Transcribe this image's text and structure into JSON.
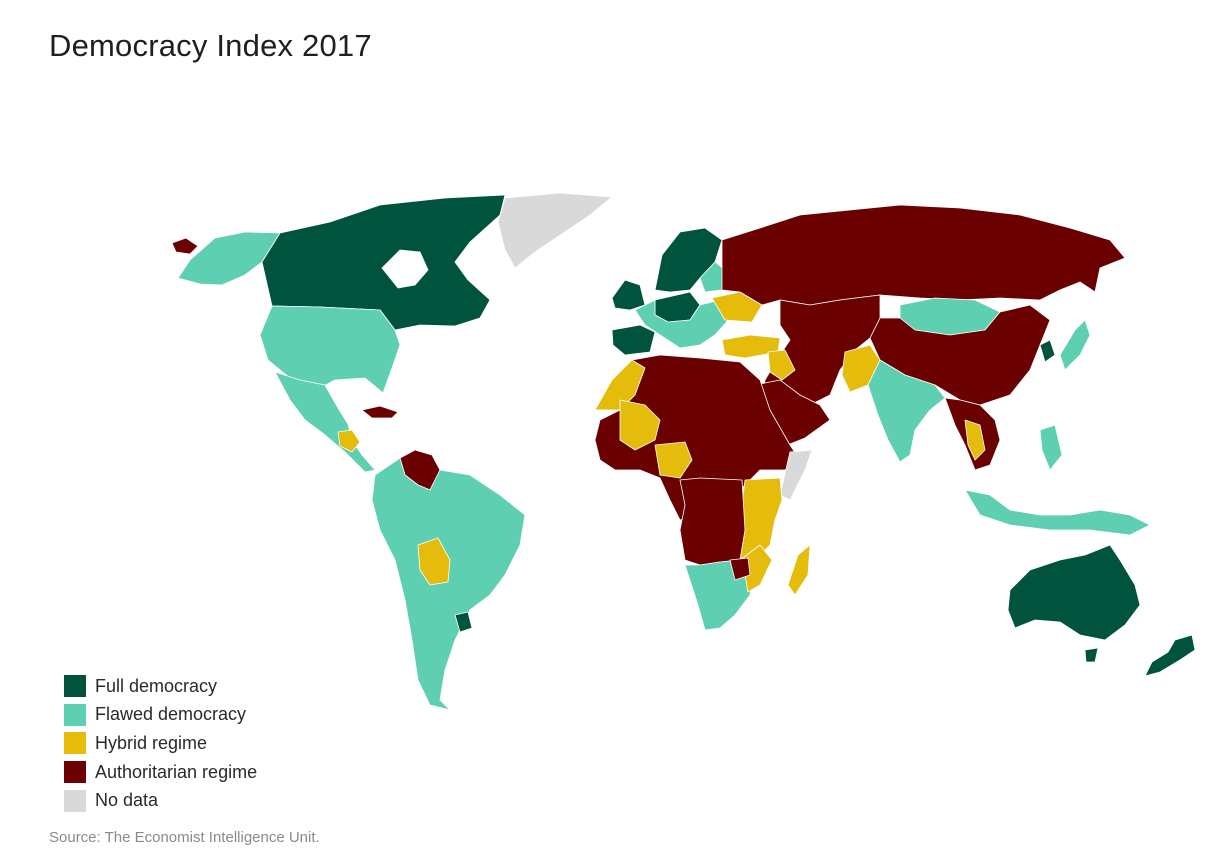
{
  "title": "Democracy Index 2017",
  "source": "Source: The Economist Intelligence Unit.",
  "legend": [
    {
      "label": "Full democracy",
      "color": "#00533d"
    },
    {
      "label": "Flawed democracy",
      "color": "#5ecfb1"
    },
    {
      "label": "Hybrid regime",
      "color": "#e5bc0b"
    },
    {
      "label": "Authoritarian regime",
      "color": "#6b0000"
    },
    {
      "label": "No data",
      "color": "#d9d9d9"
    }
  ],
  "regions": {
    "canada": "Full democracy",
    "united_states": "Flawed democracy",
    "alaska": "Flawed democracy",
    "greenland": "No data",
    "mexico_central_america": "Flawed democracy",
    "cuba": "Authoritarian regime",
    "venezuela": "Authoritarian regime",
    "south_america": "Flawed democracy",
    "bolivia": "Hybrid regime",
    "uruguay": "Full democracy",
    "western_europe": "Full democracy",
    "southern_europe": "Flawed democracy",
    "russia": "Authoritarian regime",
    "china": "Authoritarian regime",
    "mongolia": "Flawed democracy",
    "india": "Flawed democracy",
    "pakistan": "Hybrid regime",
    "middle_east": "Authoritarian regime",
    "turkey": "Hybrid regime",
    "north_africa_sahara": "Authoritarian regime",
    "morocco": "Hybrid regime",
    "southern_africa": "Flawed democracy",
    "east_africa": "Hybrid regime",
    "madagascar": "Hybrid regime",
    "somalia": "No data",
    "japan": "Flawed democracy",
    "south_korea": "Full democracy",
    "southeast_asia_islands": "Flawed democracy",
    "australia": "Full democracy",
    "new_zealand": "Full democracy"
  }
}
